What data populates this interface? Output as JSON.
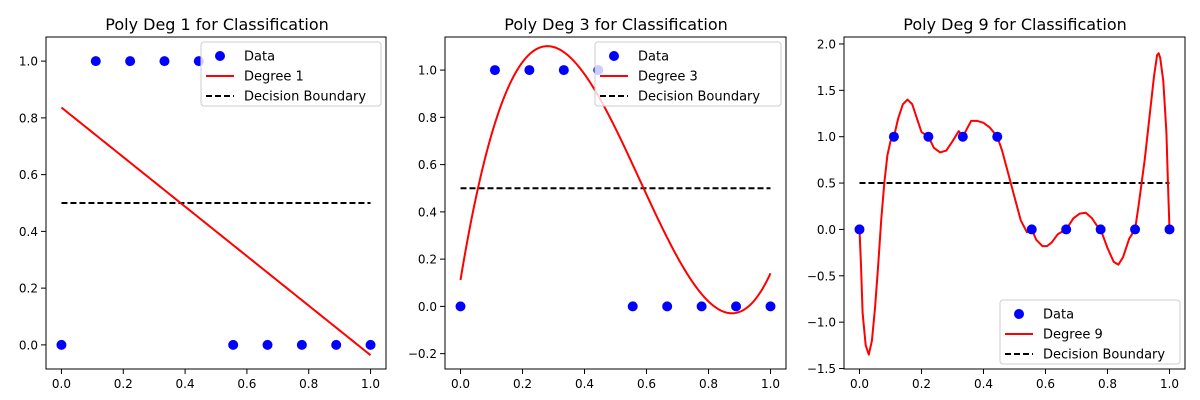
{
  "figure": {
    "background": "#ffffff"
  },
  "chart_data": [
    {
      "type": "line",
      "title": "Poly Deg 1 for Classification",
      "xlabel": "",
      "ylabel": "",
      "xlim": [
        -0.05,
        1.05
      ],
      "ylim": [
        -0.085,
        1.085
      ],
      "xticks": [
        0.0,
        0.2,
        0.4,
        0.6,
        0.8,
        1.0
      ],
      "xtick_labels": [
        "0.0",
        "0.2",
        "0.4",
        "0.6",
        "0.8",
        "1.0"
      ],
      "yticks": [
        0.0,
        0.2,
        0.4,
        0.6,
        0.8,
        1.0
      ],
      "ytick_labels": [
        "0.0",
        "0.2",
        "0.4",
        "0.6",
        "0.8",
        "1.0"
      ],
      "grid": false,
      "legend_position": "upper right",
      "scatter": {
        "name": "Data",
        "color": "#0000ff",
        "x": [
          0.0,
          0.1111,
          0.2222,
          0.3333,
          0.4444,
          0.5556,
          0.6667,
          0.7778,
          0.8889,
          1.0
        ],
        "y": [
          0,
          1,
          1,
          1,
          1,
          0,
          0,
          0,
          0,
          0
        ]
      },
      "fit": {
        "name": "Degree 1",
        "color": "#ff0000",
        "degree": 1,
        "coefficients": [
          0.8364,
          -0.8727
        ]
      },
      "boundary": {
        "name": "Decision Boundary",
        "color": "#000000",
        "y": 0.5,
        "x": [
          0,
          1
        ]
      }
    },
    {
      "type": "line",
      "title": "Poly Deg 3 for Classification",
      "xlabel": "",
      "ylabel": "",
      "xlim": [
        -0.05,
        1.05
      ],
      "ylim": [
        -0.265,
        1.14
      ],
      "xticks": [
        0.0,
        0.2,
        0.4,
        0.6,
        0.8,
        1.0
      ],
      "xtick_labels": [
        "0.0",
        "0.2",
        "0.4",
        "0.6",
        "0.8",
        "1.0"
      ],
      "yticks": [
        -0.2,
        0.0,
        0.2,
        0.4,
        0.6,
        0.8,
        1.0
      ],
      "ytick_labels": [
        "−0.2",
        "0.0",
        "0.2",
        "0.4",
        "0.6",
        "0.8",
        "1.0"
      ],
      "grid": false,
      "legend_position": "upper right",
      "scatter": {
        "name": "Data",
        "color": "#0000ff",
        "x": [
          0.0,
          0.1111,
          0.2222,
          0.3333,
          0.4444,
          0.5556,
          0.6667,
          0.7778,
          0.8889,
          1.0
        ],
        "y": [
          0,
          1,
          1,
          1,
          1,
          0,
          0,
          0,
          0,
          0
        ]
      },
      "fit": {
        "name": "Degree 3",
        "color": "#ff0000",
        "degree": 3,
        "coefficients": [
          0.112,
          7.9,
          -18.6,
          10.728
        ]
      },
      "boundary": {
        "name": "Decision Boundary",
        "color": "#000000",
        "y": 0.5,
        "x": [
          0,
          1
        ]
      }
    },
    {
      "type": "line",
      "title": "Poly Deg 9 for Classification",
      "xlabel": "",
      "ylabel": "",
      "xlim": [
        -0.05,
        1.05
      ],
      "ylim": [
        -1.505,
        2.075
      ],
      "xticks": [
        0.0,
        0.2,
        0.4,
        0.6,
        0.8,
        1.0
      ],
      "xtick_labels": [
        "0.0",
        "0.2",
        "0.4",
        "0.6",
        "0.8",
        "1.0"
      ],
      "yticks": [
        -1.5,
        -1.0,
        -0.5,
        0.0,
        0.5,
        1.0,
        1.5,
        2.0
      ],
      "ytick_labels": [
        "−1.5",
        "−1.0",
        "−0.5",
        "0.0",
        "0.5",
        "1.0",
        "1.5",
        "2.0"
      ],
      "grid": false,
      "legend_position": "lower right",
      "scatter": {
        "name": "Data",
        "color": "#0000ff",
        "x": [
          0.0,
          0.1111,
          0.2222,
          0.3333,
          0.4444,
          0.5556,
          0.6667,
          0.7778,
          0.8889,
          1.0
        ],
        "y": [
          0,
          1,
          1,
          1,
          1,
          0,
          0,
          0,
          0,
          0
        ]
      },
      "fit": {
        "name": "Degree 9",
        "color": "#ff0000",
        "degree": 9,
        "curve_x": [
          0.0,
          0.005,
          0.01,
          0.02,
          0.03,
          0.04,
          0.05,
          0.06,
          0.07,
          0.08,
          0.09,
          0.1,
          0.1111,
          0.125,
          0.14,
          0.155,
          0.17,
          0.185,
          0.2,
          0.2222,
          0.24,
          0.26,
          0.28,
          0.3,
          0.32,
          0.3333,
          0.36,
          0.38,
          0.4,
          0.42,
          0.4444,
          0.46,
          0.48,
          0.5,
          0.52,
          0.54,
          0.5556,
          0.57,
          0.59,
          0.605,
          0.62,
          0.64,
          0.6667,
          0.69,
          0.71,
          0.73,
          0.75,
          0.77,
          0.7778,
          0.8,
          0.82,
          0.835,
          0.85,
          0.87,
          0.8889,
          0.9,
          0.92,
          0.94,
          0.95,
          0.96,
          0.965,
          0.97,
          0.98,
          0.99,
          0.995,
          1.0
        ],
        "curve_y": [
          0.0,
          -0.4,
          -0.9,
          -1.25,
          -1.35,
          -1.2,
          -0.85,
          -0.4,
          0.1,
          0.5,
          0.8,
          0.95,
          1.0,
          1.2,
          1.35,
          1.4,
          1.35,
          1.2,
          1.05,
          1.0,
          0.88,
          0.83,
          0.85,
          0.95,
          1.06,
          1.0,
          1.17,
          1.17,
          1.15,
          1.1,
          1.0,
          0.85,
          0.6,
          0.35,
          0.1,
          -0.03,
          0.0,
          -0.11,
          -0.18,
          -0.18,
          -0.14,
          -0.05,
          0.0,
          0.12,
          0.17,
          0.18,
          0.12,
          0.02,
          0.0,
          -0.2,
          -0.35,
          -0.38,
          -0.3,
          -0.1,
          0.0,
          0.25,
          0.75,
          1.35,
          1.65,
          1.88,
          1.9,
          1.85,
          1.6,
          1.05,
          0.5,
          0.0
        ]
      },
      "boundary": {
        "name": "Decision Boundary",
        "color": "#000000",
        "y": 0.5,
        "x": [
          0,
          1
        ]
      }
    }
  ]
}
